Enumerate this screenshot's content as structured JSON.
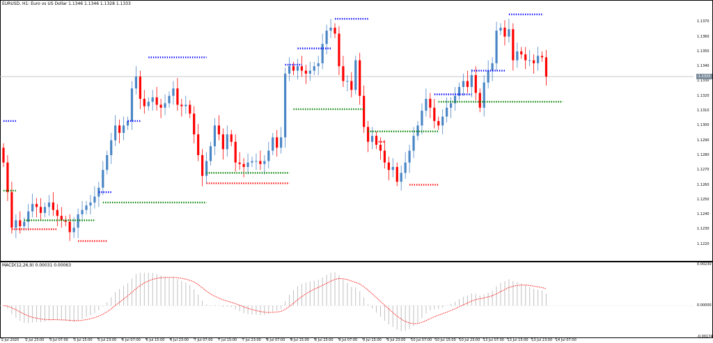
{
  "chart_title": "EURUSD, H1:  Euro vs US Dollar  1.1346 1.1346 1.1328 1.1333",
  "macd_title": "MACD(12,26,9) 0.00031 0.00063",
  "price_axis": [
    "1.1370",
    "1.1360",
    "1.1350",
    "1.1340",
    "1.1330",
    "1.1320",
    "1.1310",
    "1.1300",
    "1.1290",
    "1.1280",
    "1.1270",
    "1.1260",
    "1.1250",
    "1.1240",
    "1.1230",
    "1.1220"
  ],
  "current_price": "1.1333",
  "macd_axis": [
    "0.00230",
    "0.00000",
    "-0.00174"
  ],
  "time_axis": [
    "2 Jul 2020",
    "2 Jul 23:00",
    "3 Jul 07:00",
    "3 Jul 15:00",
    "3 Jul 23:00",
    "6 Jul 07:00",
    "6 Jul 15:00",
    "6 Jul 23:00",
    "7 Jul 07:00",
    "7 Jul 15:00",
    "7 Jul 23:00",
    "8 Jul 07:00",
    "8 Jul 15:00",
    "8 Jul 23:00",
    "9 Jul 07:00",
    "9 Jul 15:00",
    "9 Jul 23:00",
    "10 Jul 07:00",
    "10 Jul 15:00",
    "10 Jul 23:00",
    "13 Jul 07:00",
    "13 Jul 15:00",
    "13 Jul 23:00",
    "14 Jul 07:00"
  ],
  "colors": {
    "bull": "#4a86c5",
    "bear": "#ff0000",
    "resistance": "#0000ff",
    "resistance_breach": "#ff0000",
    "support": "#008000",
    "macd_hist": "#c0c0c0",
    "macd_signal": "#ff0000",
    "price_line": "#c0c0c0"
  },
  "chart_data": {
    "type": "candlestick",
    "title": "EURUSD, H1:  Euro vs US Dollar",
    "ylim": [
      1.121,
      1.138
    ],
    "macd_ylim": [
      -0.00174,
      0.0023
    ],
    "close_series": [
      1.1275,
      1.1255,
      1.1231,
      1.1236,
      1.1232,
      1.1235,
      1.1242,
      1.1247,
      1.1245,
      1.1241,
      1.1245,
      1.1248,
      1.1243,
      1.1239,
      1.1236,
      1.1235,
      1.1228,
      1.1231,
      1.124,
      1.1243,
      1.1246,
      1.1248,
      1.1252,
      1.1258,
      1.127,
      1.128,
      1.129,
      1.13,
      1.1295,
      1.13,
      1.1303,
      1.1325,
      1.1333,
      1.1318,
      1.1313,
      1.1316,
      1.1319,
      1.1314,
      1.1312,
      1.1315,
      1.132,
      1.1325,
      1.1314,
      1.1313,
      1.1314,
      1.1308,
      1.1294,
      1.128,
      1.1266,
      1.1276,
      1.1286,
      1.13,
      1.1294,
      1.1284,
      1.1294,
      1.1289,
      1.1275,
      1.1274,
      1.1272,
      1.1275,
      1.1276,
      1.1276,
      1.1274,
      1.1276,
      1.1283,
      1.1292,
      1.1285,
      1.1292,
      1.1335,
      1.134,
      1.1337,
      1.134,
      1.1337,
      1.1335,
      1.1337,
      1.134,
      1.1342,
      1.1355,
      1.1364,
      1.1366,
      1.1362,
      1.134,
      1.133,
      1.133,
      1.1324,
      1.1344,
      1.132,
      1.1299,
      1.1289,
      1.1293,
      1.1287,
      1.1283,
      1.1275,
      1.127,
      1.1272,
      1.1262,
      1.1268,
      1.1275,
      1.1283,
      1.1293,
      1.13,
      1.131,
      1.1318,
      1.1312,
      1.1303,
      1.13,
      1.1306,
      1.1312,
      1.1315,
      1.132,
      1.1326,
      1.133,
      1.1326,
      1.1334,
      1.1322,
      1.1312,
      1.1329,
      1.1337,
      1.1342,
      1.1364,
      1.1366,
      1.136,
      1.1365,
      1.1344,
      1.135,
      1.1348,
      1.1344,
      1.1344,
      1.1342,
      1.1347,
      1.1346,
      1.1333
    ]
  }
}
